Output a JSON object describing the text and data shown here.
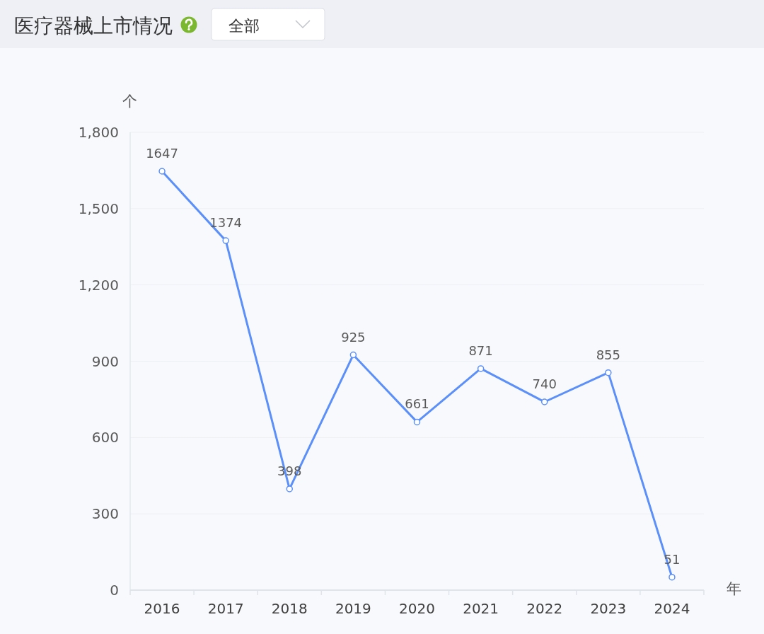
{
  "chart_data": {
    "type": "line",
    "title": "医疗器械上市情况",
    "annotations": [
      "全部"
    ],
    "xlabel": "年",
    "ylabel": "个",
    "categories": [
      "2016",
      "2017",
      "2018",
      "2019",
      "2020",
      "2021",
      "2022",
      "2023",
      "2024"
    ],
    "series": [
      {
        "color": "#5b8ff9",
        "values": [
          1647,
          1374,
          398,
          925,
          661,
          871,
          740,
          855,
          51
        ]
      }
    ],
    "ylim": [
      0,
      1800
    ],
    "yticks": [
      0,
      300,
      600,
      900,
      {
        "value": 1200,
        "label": "1,200"
      },
      {
        "value": 1500,
        "label": "1,500"
      },
      {
        "value": 1800,
        "label": "1,800"
      }
    ],
    "grid": "y",
    "marker": "circle",
    "line_style": "solid",
    "data_labels": true
  }
}
